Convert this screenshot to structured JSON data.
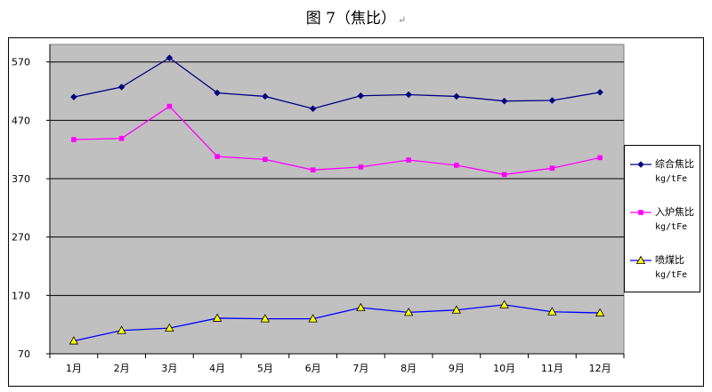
{
  "caption": {
    "title": "图 7（焦比）",
    "mark": "↵"
  },
  "chart_data": {
    "type": "line",
    "categories": [
      "1月",
      "2月",
      "3月",
      "4月",
      "5月",
      "6月",
      "7月",
      "8月",
      "9月",
      "10月",
      "11月",
      "12月"
    ],
    "ylim": [
      70,
      600
    ],
    "yticks": [
      70,
      170,
      270,
      370,
      470,
      570
    ],
    "grid": true,
    "legend_position": "right",
    "plot_background": "#c0c0c0",
    "series": [
      {
        "name": "综合焦比",
        "unit": "kg/tFe",
        "color": "#000080",
        "marker": "diamond",
        "values": [
          510,
          527,
          577,
          517,
          511,
          490,
          512,
          514,
          511,
          503,
          504,
          518
        ]
      },
      {
        "name": "入炉焦比",
        "unit": "kg/tFe",
        "color": "#ff00ff",
        "marker": "square",
        "values": [
          437,
          439,
          494,
          408,
          403,
          385,
          390,
          402,
          393,
          377,
          388,
          406
        ]
      },
      {
        "name": "喷煤比",
        "unit": "kg/tFe",
        "color": "#0000ff",
        "marker": "triangle",
        "marker_fill": "#ffff00",
        "values": [
          92,
          110,
          114,
          131,
          130,
          130,
          149,
          141,
          145,
          154,
          142,
          140
        ]
      }
    ]
  }
}
